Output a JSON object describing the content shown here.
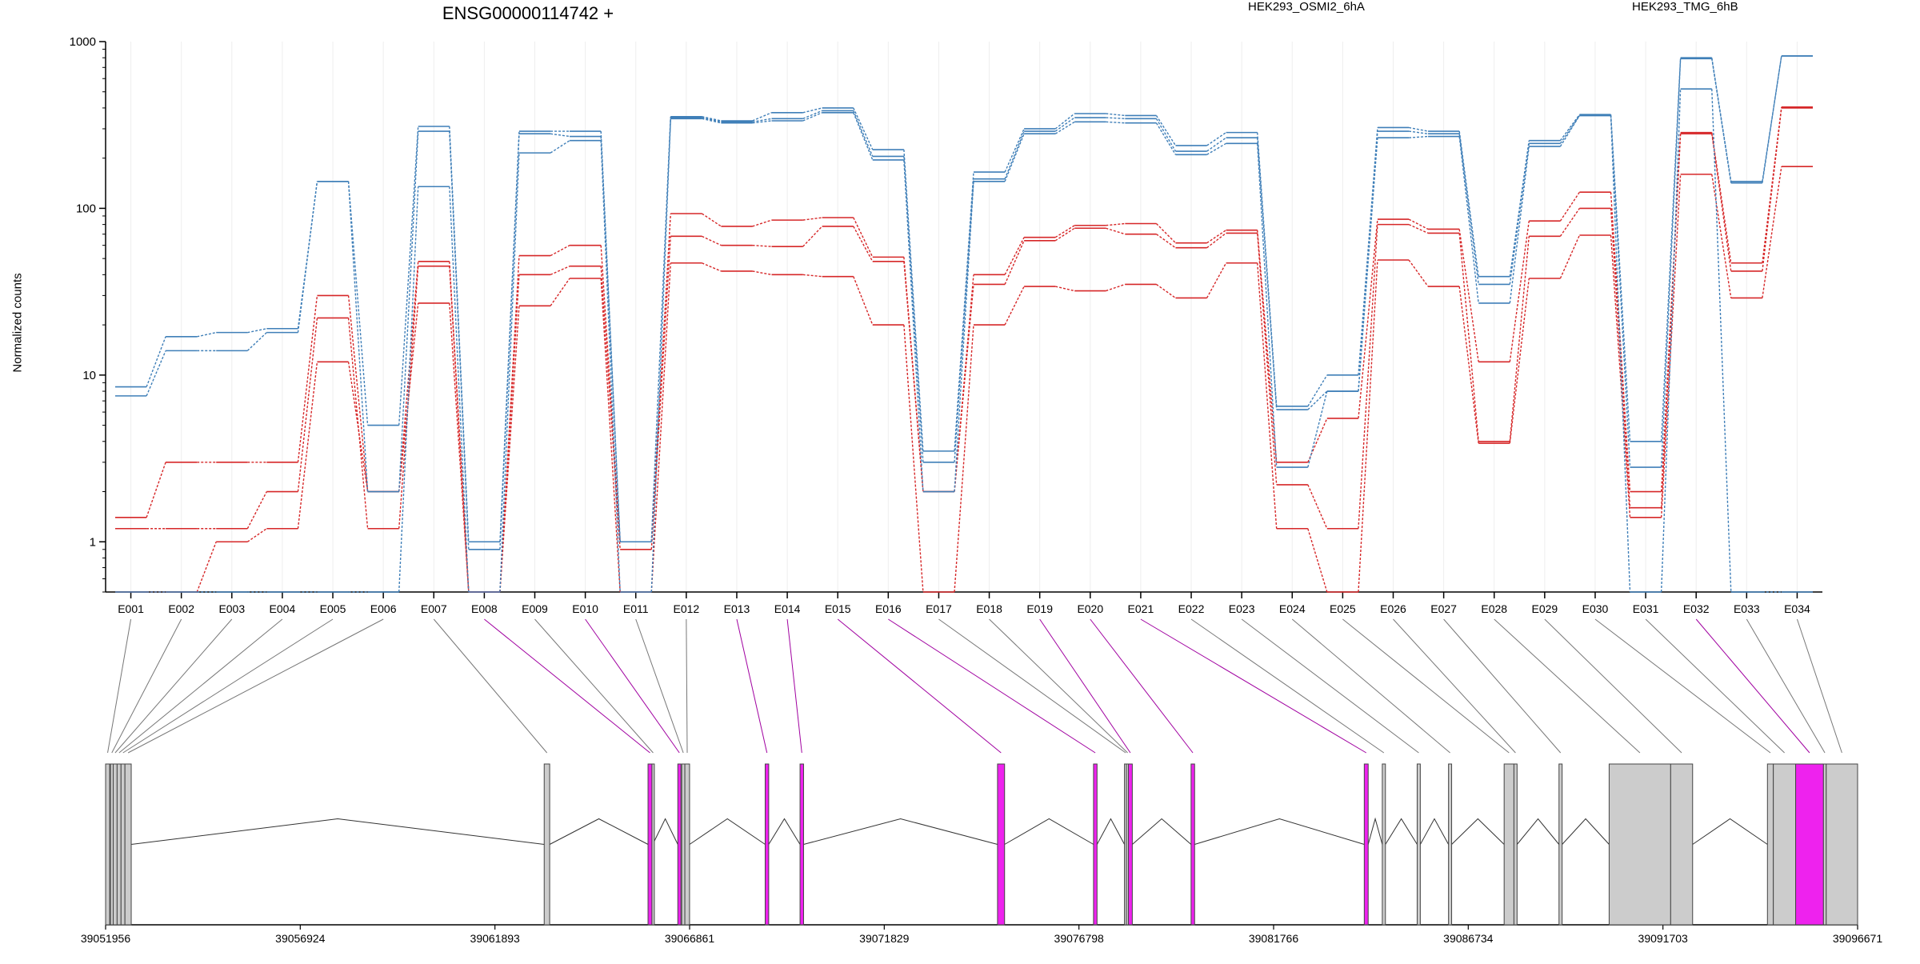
{
  "chart_data": {
    "type": "line",
    "title": "ENSG00000114742 +",
    "ylabel": "Normalized counts",
    "yscale": "log",
    "ylim": [
      0.5,
      1000
    ],
    "yticks": [
      1,
      10,
      100,
      1000
    ],
    "yticklabels": [
      "1",
      "10",
      "100",
      "1000"
    ],
    "categories": [
      "E001",
      "E002",
      "E003",
      "E004",
      "E005",
      "E006",
      "E007",
      "E008",
      "E009",
      "E010",
      "E011",
      "E012",
      "E013",
      "E014",
      "E015",
      "E016",
      "E017",
      "E018",
      "E019",
      "E020",
      "E021",
      "E022",
      "E023",
      "E024",
      "E025",
      "E026",
      "E027",
      "E028",
      "E029",
      "E030",
      "E031",
      "E032",
      "E033",
      "E034"
    ],
    "legend_placement": "top",
    "grid": "vertical",
    "series": [
      {
        "name": "HEK293_OSMI2_6hA",
        "color": "#d62728",
        "lines": [
          [
            1.4,
            3,
            3,
            3,
            30,
            2,
            48,
            0.5,
            52,
            60,
            1,
            93,
            78,
            85,
            88,
            51,
            2,
            40,
            67,
            79,
            81,
            62,
            74,
            3,
            5.5,
            86,
            75,
            12,
            84,
            125,
            2,
            285,
            47,
            405
          ],
          [
            1.2,
            1.2,
            1.2,
            2,
            22,
            1.2,
            45,
            0.5,
            40,
            45,
            0.9,
            68,
            60,
            59,
            78,
            48,
            2,
            35,
            64,
            76,
            70,
            58,
            71,
            2.2,
            1.2,
            80,
            71,
            4,
            68,
            100,
            1.6,
            280,
            42,
            400
          ],
          [
            0.5,
            0.5,
            1,
            1.2,
            12,
            2,
            27,
            0.5,
            26,
            38,
            0.5,
            47,
            42,
            40,
            39,
            20,
            0.5,
            20,
            34,
            32,
            35,
            29,
            47,
            1.2,
            0.5,
            49,
            34,
            3.9,
            38,
            69,
            1.4,
            160,
            29,
            178
          ]
        ]
      },
      {
        "name": "HEK293_TMG_6hB",
        "color": "#3f7fb8",
        "lines": [
          [
            8.5,
            17,
            18,
            19,
            145,
            5,
            310,
            1,
            290,
            290,
            1,
            355,
            335,
            375,
            400,
            225,
            3.5,
            165,
            300,
            370,
            360,
            238,
            285,
            6.5,
            10,
            305,
            290,
            39,
            255,
            365,
            4,
            800,
            145,
            820
          ],
          [
            7.5,
            14,
            14,
            18,
            145,
            2,
            290,
            0.9,
            280,
            270,
            1,
            350,
            330,
            345,
            385,
            205,
            3,
            150,
            290,
            350,
            345,
            220,
            265,
            6.2,
            8,
            290,
            280,
            35,
            245,
            360,
            2.8,
            790,
            142,
            820
          ],
          [
            0.5,
            0.5,
            0.5,
            0.5,
            0.5,
            0.5,
            135,
            0.5,
            215,
            255,
            0.5,
            345,
            325,
            335,
            375,
            195,
            2,
            145,
            280,
            330,
            325,
            210,
            245,
            2.8,
            8,
            265,
            270,
            27,
            235,
            360,
            0.5,
            520,
            0.5,
            0.5
          ]
        ]
      }
    ],
    "exon_lines": [
      {
        "type": "solid",
        "values": [
          0,
          0,
          0,
          0,
          0,
          0,
          0,
          0,
          0,
          0,
          0,
          0,
          0,
          0,
          0,
          0,
          0,
          0,
          0,
          0,
          0,
          0,
          0,
          0,
          0,
          0,
          0,
          0,
          0,
          0,
          0,
          0,
          0,
          0
        ]
      }
    ],
    "genomic_axis": {
      "start": 39051956,
      "end": 39096671,
      "ticks": [
        39051956,
        39056924,
        39061893,
        39066861,
        39071829,
        39076798,
        39081766,
        39086734,
        39091703,
        39096671
      ],
      "ticklabels": [
        "39051956",
        "39056924",
        "39061893",
        "39066861",
        "39071829",
        "39076798",
        "39081766",
        "39086734",
        "39091703",
        "39096671"
      ]
    },
    "exons": [
      {
        "id": "E001",
        "start": 39051956,
        "end": 39052060,
        "highlight": false
      },
      {
        "id": "E002",
        "start": 39052080,
        "end": 39052150,
        "highlight": false
      },
      {
        "id": "E003",
        "start": 39052150,
        "end": 39052250,
        "highlight": false
      },
      {
        "id": "E004",
        "start": 39052250,
        "end": 39052350,
        "highlight": false
      },
      {
        "id": "E005",
        "start": 39052350,
        "end": 39052450,
        "highlight": false
      },
      {
        "id": "E006",
        "start": 39052450,
        "end": 39052610,
        "highlight": false
      },
      {
        "id": "E007",
        "start": 39063150,
        "end": 39063290,
        "highlight": false
      },
      {
        "id": "E008",
        "start": 39065800,
        "end": 39065900,
        "highlight": true
      },
      {
        "id": "E009",
        "start": 39065900,
        "end": 39065920,
        "highlight": false
      },
      {
        "id": "E010",
        "start": 39066560,
        "end": 39066640,
        "highlight": true
      },
      {
        "id": "E011",
        "start": 39066660,
        "end": 39066740,
        "highlight": false
      },
      {
        "id": "E012",
        "start": 39066740,
        "end": 39066860,
        "highlight": false
      },
      {
        "id": "E013",
        "start": 39068790,
        "end": 39068880,
        "highlight": true
      },
      {
        "id": "E014",
        "start": 39069680,
        "end": 39069770,
        "highlight": true
      },
      {
        "id": "E015",
        "start": 39074720,
        "end": 39074900,
        "highlight": true
      },
      {
        "id": "E016",
        "start": 39077170,
        "end": 39077260,
        "highlight": true
      },
      {
        "id": "E017",
        "start": 39077960,
        "end": 39078010,
        "highlight": false
      },
      {
        "id": "E018",
        "start": 39078010,
        "end": 39078060,
        "highlight": false
      },
      {
        "id": "E019",
        "start": 39078060,
        "end": 39078160,
        "highlight": true
      },
      {
        "id": "E020",
        "start": 39079660,
        "end": 39079750,
        "highlight": true
      },
      {
        "id": "E021",
        "start": 39084080,
        "end": 39084180,
        "highlight": true
      },
      {
        "id": "E022",
        "start": 39084540,
        "end": 39084620,
        "highlight": false
      },
      {
        "id": "E023",
        "start": 39085430,
        "end": 39085510,
        "highlight": false
      },
      {
        "id": "E024",
        "start": 39086230,
        "end": 39086310,
        "highlight": false
      },
      {
        "id": "E025",
        "start": 39087650,
        "end": 39087900,
        "highlight": false
      },
      {
        "id": "E026",
        "start": 39087900,
        "end": 39087980,
        "highlight": false
      },
      {
        "id": "E027",
        "start": 39089050,
        "end": 39089130,
        "highlight": false
      },
      {
        "id": "E028",
        "start": 39090330,
        "end": 39091900,
        "highlight": false
      },
      {
        "id": "E029",
        "start": 39091900,
        "end": 39092460,
        "highlight": false
      },
      {
        "id": "E030",
        "start": 39094370,
        "end": 39094520,
        "highlight": false
      },
      {
        "id": "E031",
        "start": 39094520,
        "end": 39095090,
        "highlight": false
      },
      {
        "id": "E032",
        "start": 39095090,
        "end": 39095800,
        "highlight": true
      },
      {
        "id": "E033",
        "start": 39095800,
        "end": 39095870,
        "highlight": false
      },
      {
        "id": "E034",
        "start": 39095870,
        "end": 39096671,
        "highlight": false
      }
    ],
    "highlight_color": "#ee22ee",
    "exon_color": "#cccccc"
  }
}
